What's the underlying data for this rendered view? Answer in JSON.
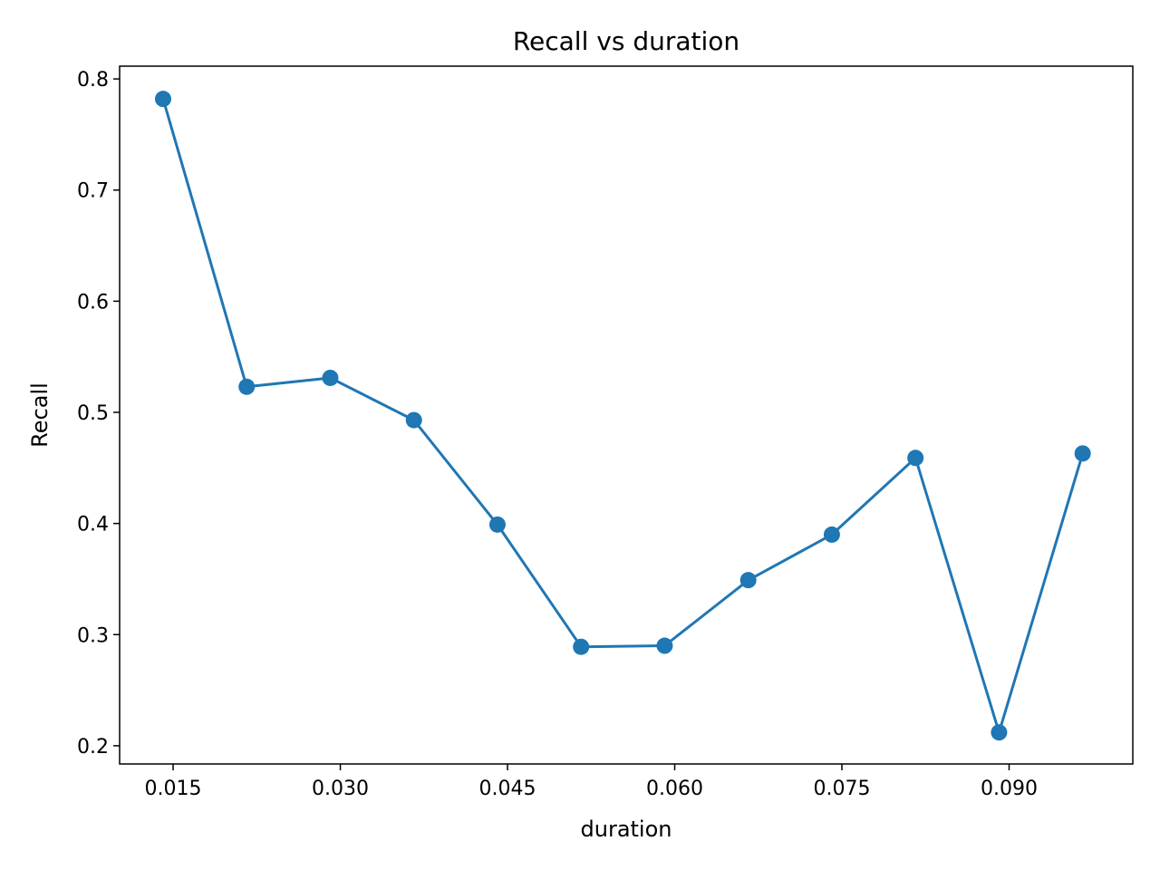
{
  "chart_data": {
    "type": "line",
    "title": "Recall vs duration",
    "xlabel": "duration",
    "ylabel": "Recall",
    "xlim": [
      0.0102,
      0.1011
    ],
    "ylim": [
      0.1836,
      0.8115
    ],
    "grid": false,
    "color": "#1f77b4",
    "x_ticks": [
      0.015,
      0.03,
      0.045,
      0.06,
      0.075,
      0.09
    ],
    "x_tick_labels": [
      "0.015",
      "0.030",
      "0.045",
      "0.060",
      "0.075",
      "0.090"
    ],
    "y_ticks": [
      0.2,
      0.3,
      0.4,
      0.5,
      0.6,
      0.7,
      0.8
    ],
    "y_tick_labels": [
      "0.2",
      "0.3",
      "0.4",
      "0.5",
      "0.6",
      "0.7",
      "0.8"
    ],
    "series": [
      {
        "marker": "circle",
        "x": [
          0.0141,
          0.0216,
          0.0291,
          0.0366,
          0.0441,
          0.0516,
          0.0591,
          0.0666,
          0.0741,
          0.0816,
          0.0891,
          0.0966
        ],
        "y": [
          0.782,
          0.523,
          0.531,
          0.493,
          0.399,
          0.289,
          0.29,
          0.349,
          0.39,
          0.459,
          0.212,
          0.463
        ]
      }
    ]
  }
}
